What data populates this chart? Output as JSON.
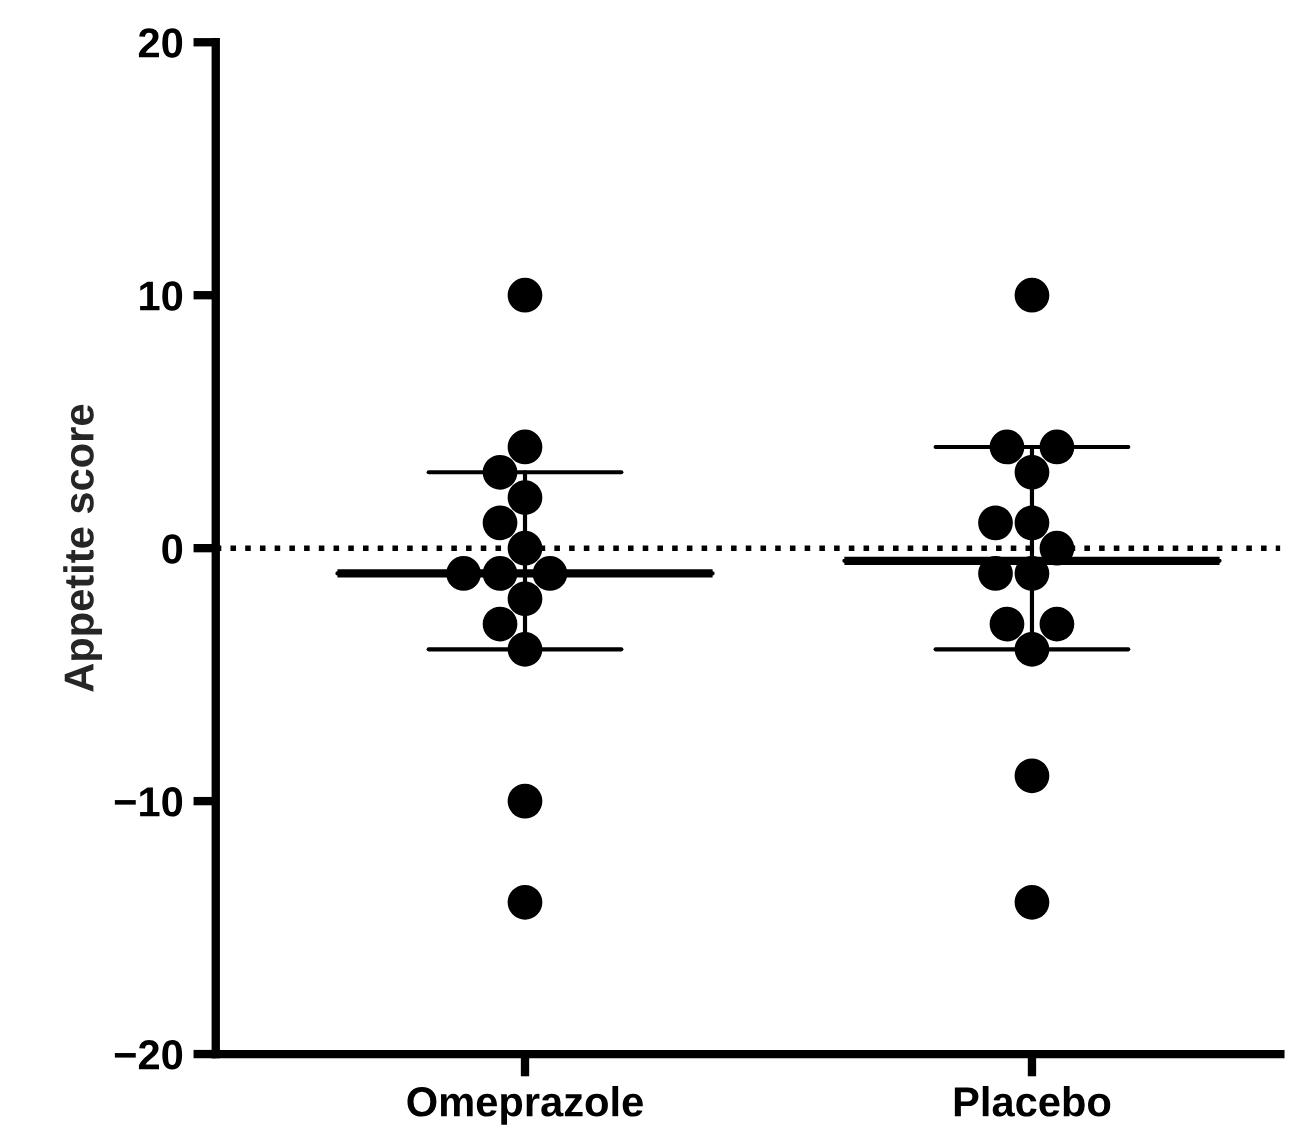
{
  "chart_data": {
    "type": "scatter",
    "ylabel": "Appetite score",
    "categories": [
      "Omeprazole",
      "Placebo"
    ],
    "series": [
      {
        "color": "#000000",
        "marker": "circle",
        "x": [
          "Omeprazole",
          "Omeprazole",
          "Omeprazole",
          "Omeprazole",
          "Omeprazole",
          "Omeprazole",
          "Omeprazole",
          "Omeprazole",
          "Omeprazole",
          "Omeprazole",
          "Omeprazole",
          "Omeprazole",
          "Omeprazole",
          "Omeprazole",
          "Placebo",
          "Placebo",
          "Placebo",
          "Placebo",
          "Placebo",
          "Placebo",
          "Placebo",
          "Placebo",
          "Placebo",
          "Placebo",
          "Placebo",
          "Placebo",
          "Placebo",
          "Placebo"
        ],
        "values": [
          10,
          4,
          3,
          2,
          1,
          0,
          -1,
          -1,
          -1,
          -2,
          -3,
          -4,
          -10,
          -14,
          10,
          4,
          4,
          3,
          1,
          1,
          0,
          -1,
          -1,
          -3,
          -3,
          -4,
          -9,
          -14
        ]
      },
      {
        "type": "box",
        "color": "#000000",
        "boxes": [
          {
            "low": -4,
            "q1": -1,
            "median": -1,
            "q3": -1,
            "high": 3
          },
          {
            "low": -4,
            "q1": -0.5,
            "median": -0.5,
            "q3": -0.5,
            "high": 4
          }
        ]
      }
    ],
    "ylim": [
      -20,
      20
    ],
    "yticks": [
      {
        "value": -20,
        "label": "−20"
      },
      {
        "value": -10,
        "label": "−10"
      },
      0,
      10,
      20
    ],
    "ref_lines": [
      {
        "axis": "y",
        "value": 0,
        "color": "#000000",
        "line_style": "dotted"
      }
    ],
    "grid": false,
    "legend": false
  }
}
